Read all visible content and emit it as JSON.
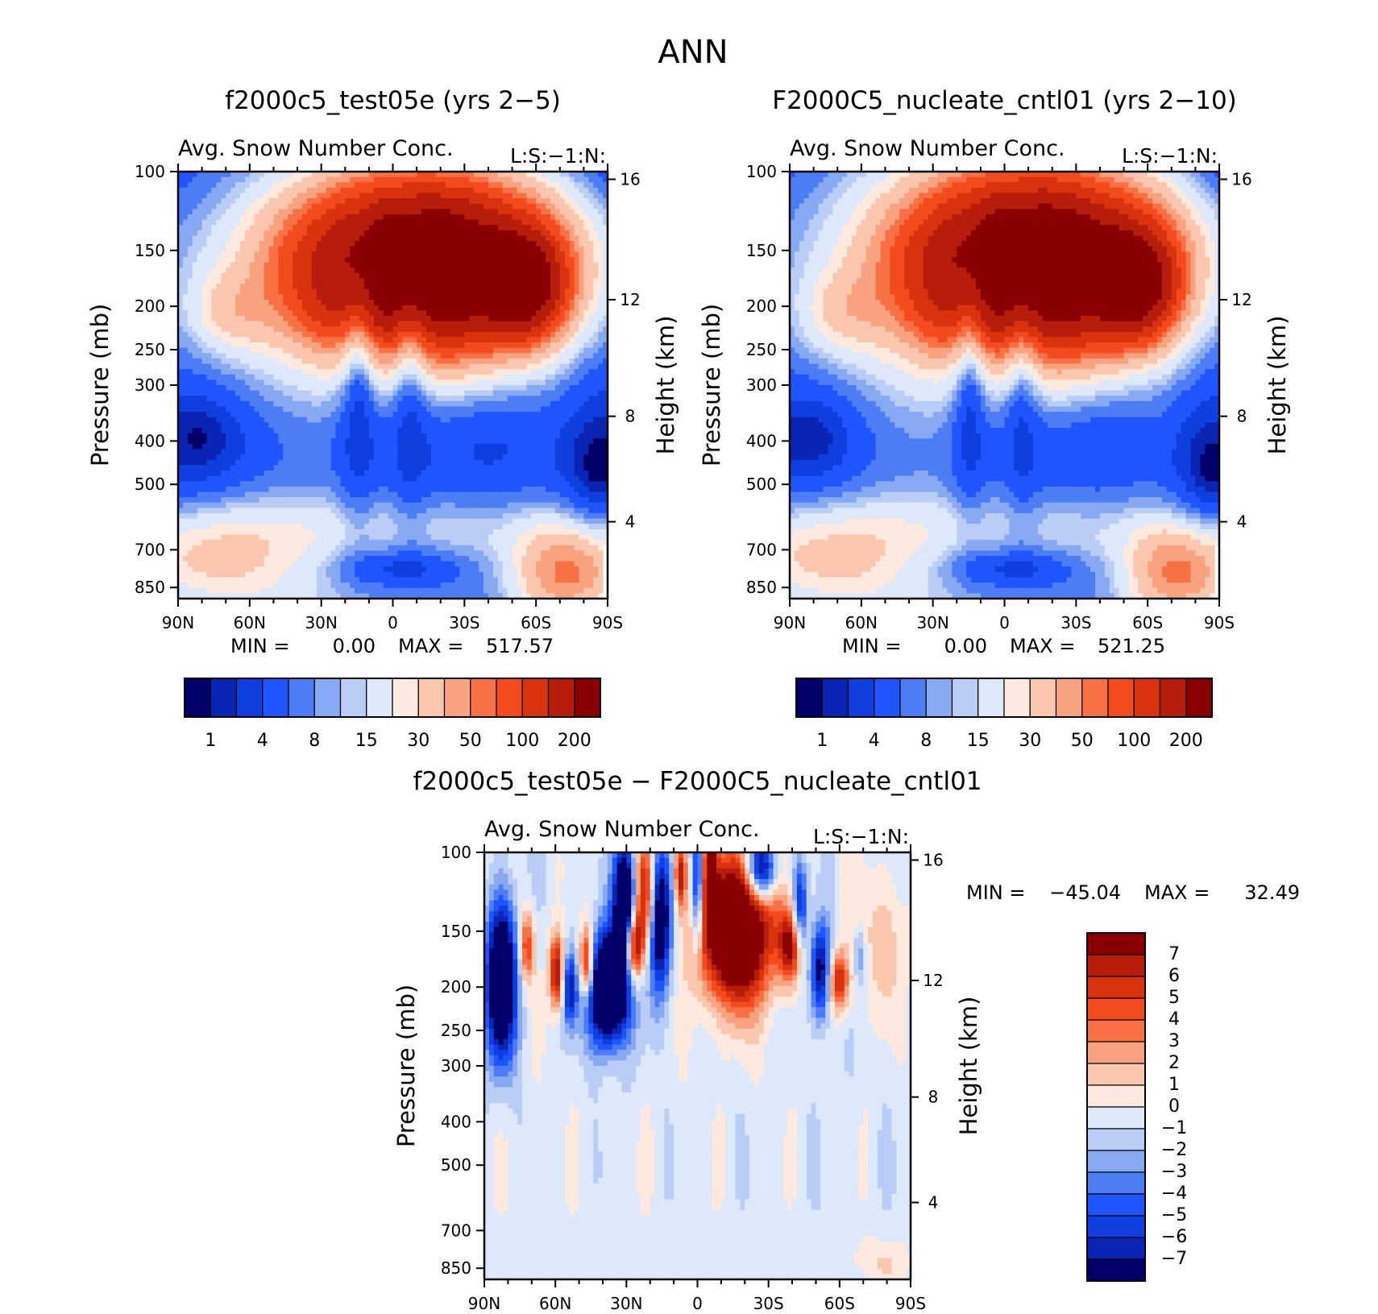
{
  "figure_title": "ANN",
  "chart_data": [
    {
      "type": "heatmap",
      "panel": "top-left",
      "title": "f2000c5_test05e (yrs 2−5)",
      "subtitle": "Avg. Snow Number Conc.",
      "field_tag": "L:S:−1:N:",
      "ylabel": "Pressure (mb)",
      "y2label": "Height (km)",
      "x_ticks": [
        "90N",
        "60N",
        "30N",
        "0",
        "30S",
        "60S",
        "90S"
      ],
      "y_ticks": [
        "100",
        "150",
        "200",
        "250",
        "300",
        "400",
        "500",
        "700",
        "850"
      ],
      "y2_ticks": [
        "16",
        "12",
        "8",
        "4"
      ],
      "min_label": "MIN =",
      "min_value": "0.00",
      "max_label": "MAX =",
      "max_value": "517.57",
      "colorbar_labels": [
        "1",
        "4",
        "8",
        "15",
        "30",
        "50",
        "100",
        "200"
      ],
      "colorbar_colors": [
        "#00006b",
        "#0a25b3",
        "#0f3fdf",
        "#1f55ff",
        "#4d7df5",
        "#86a9f2",
        "#b9cdf7",
        "#dde9fb",
        "#fde9de",
        "#fac7ae",
        "#f8a27f",
        "#f77144",
        "#f34b1d",
        "#d8320f",
        "#b61d0a",
        "#8a0000"
      ],
      "levels": [
        0.5,
        1,
        2,
        4,
        6,
        8,
        10,
        15,
        20,
        30,
        40,
        50,
        70,
        100,
        150,
        200
      ]
    },
    {
      "type": "heatmap",
      "panel": "top-right",
      "title": "F2000C5_nucleate_cntl01 (yrs 2−10)",
      "subtitle": "Avg. Snow Number Conc.",
      "field_tag": "L:S:−1:N:",
      "ylabel": "Pressure (mb)",
      "y2label": "Height (km)",
      "x_ticks": [
        "90N",
        "60N",
        "30N",
        "0",
        "30S",
        "60S",
        "90S"
      ],
      "y_ticks": [
        "100",
        "150",
        "200",
        "250",
        "300",
        "400",
        "500",
        "700",
        "850"
      ],
      "y2_ticks": [
        "16",
        "12",
        "8",
        "4"
      ],
      "min_label": "MIN =",
      "min_value": "0.00",
      "max_label": "MAX =",
      "max_value": "521.25",
      "colorbar_labels": [
        "1",
        "4",
        "8",
        "15",
        "30",
        "50",
        "100",
        "200"
      ],
      "colorbar_colors": [
        "#00006b",
        "#0a25b3",
        "#0f3fdf",
        "#1f55ff",
        "#4d7df5",
        "#86a9f2",
        "#b9cdf7",
        "#dde9fb",
        "#fde9de",
        "#fac7ae",
        "#f8a27f",
        "#f77144",
        "#f34b1d",
        "#d8320f",
        "#b61d0a",
        "#8a0000"
      ],
      "levels": [
        0.5,
        1,
        2,
        4,
        6,
        8,
        10,
        15,
        20,
        30,
        40,
        50,
        70,
        100,
        150,
        200
      ]
    },
    {
      "type": "heatmap",
      "panel": "bottom",
      "title": "f2000c5_test05e − F2000C5_nucleate_cntl01",
      "subtitle": "Avg. Snow Number Conc.",
      "field_tag": "L:S:−1:N:",
      "ylabel": "Pressure (mb)",
      "y2label": "Height (km)",
      "x_ticks": [
        "90N",
        "60N",
        "30N",
        "0",
        "30S",
        "60S",
        "90S"
      ],
      "y_ticks": [
        "100",
        "150",
        "200",
        "250",
        "300",
        "400",
        "500",
        "700",
        "850"
      ],
      "y2_ticks": [
        "16",
        "12",
        "8",
        "4"
      ],
      "min_label": "MIN =",
      "min_value": "−45.04",
      "max_label": "MAX =",
      "max_value": "32.49",
      "colorbar_labels": [
        "7",
        "6",
        "5",
        "4",
        "3",
        "2",
        "1",
        "0",
        "−1",
        "−2",
        "−3",
        "−4",
        "−5",
        "−6",
        "−7"
      ],
      "colorbar_colors": [
        "#8a0000",
        "#b61d0a",
        "#d8320f",
        "#f34b1d",
        "#f77144",
        "#f8a27f",
        "#fac7ae",
        "#fde9de",
        "#dde9fb",
        "#b9cdf7",
        "#86a9f2",
        "#4d7df5",
        "#1f55ff",
        "#0f3fdf",
        "#0a25b3",
        "#00006b"
      ],
      "levels": [
        7,
        6,
        5,
        4,
        3,
        2,
        1,
        0,
        -1,
        -2,
        -3,
        -4,
        -5,
        -6,
        -7
      ]
    }
  ]
}
